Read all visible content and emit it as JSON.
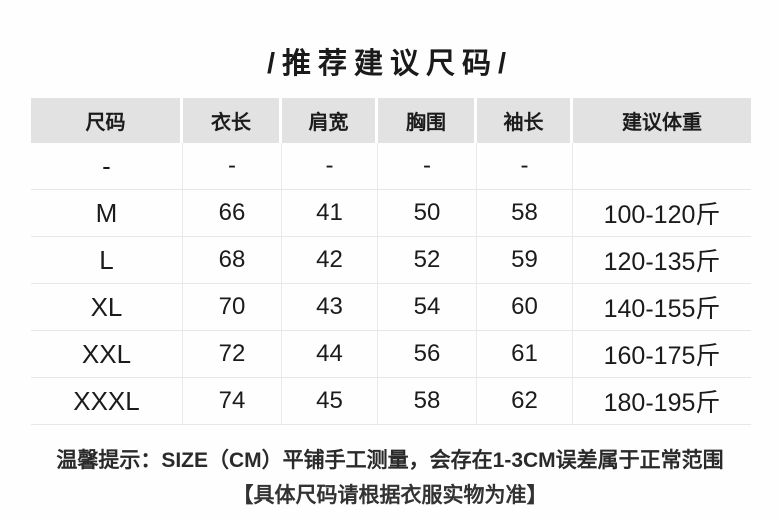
{
  "title": "/推荐建议尺码/",
  "table": {
    "headers": [
      "尺码",
      "衣长",
      "肩宽",
      "胸围",
      "袖长",
      "建议体重"
    ],
    "rows": [
      [
        "-",
        "-",
        "-",
        "-",
        "-",
        ""
      ],
      [
        "M",
        "66",
        "41",
        "50",
        "58",
        "100-120斤"
      ],
      [
        "L",
        "68",
        "42",
        "52",
        "59",
        "120-135斤"
      ],
      [
        "XL",
        "70",
        "43",
        "54",
        "60",
        "140-155斤"
      ],
      [
        "XXL",
        "72",
        "44",
        "56",
        "61",
        "160-175斤"
      ],
      [
        "XXXL",
        "74",
        "45",
        "58",
        "62",
        "180-195斤"
      ]
    ]
  },
  "notes": {
    "line1": "温馨提示：SIZE（CM）平铺手工测量，会存在1-3CM误差属于正常范围",
    "line2": "【具体尺码请根据衣服实物为准】"
  },
  "colors": {
    "header_bg": "#e2e2e2",
    "grid_line": "#e9e9e9",
    "text": "#1b1b1b"
  }
}
